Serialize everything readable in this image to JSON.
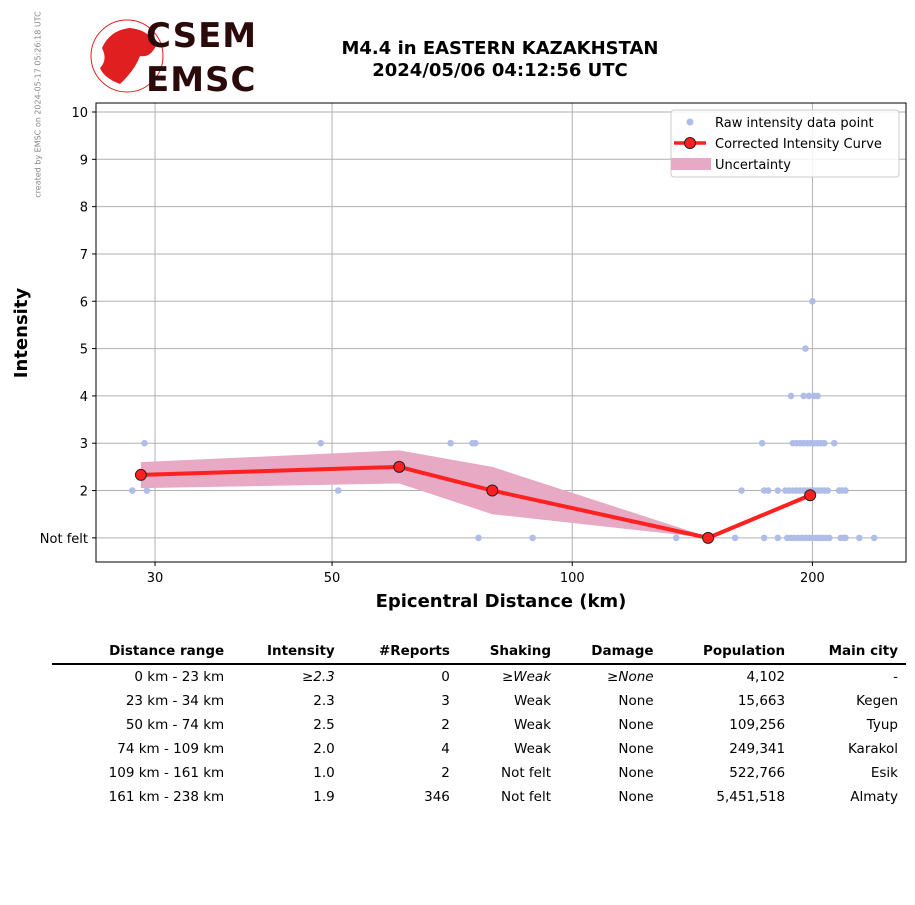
{
  "watermark": "created by EMSC on 2024-05-17 05:26:18 UTC",
  "logo": {
    "top": "CSEM",
    "bottom": "EMSC"
  },
  "title_line1": "M4.4 in EASTERN KAZAKHSTAN",
  "title_line2": "2024/05/06 04:12:56 UTC",
  "colors": {
    "raw": "#b0bde8",
    "curve": "#ff2020",
    "band": "#e8a9c4",
    "grid": "#b0b0b0"
  },
  "chart_data": {
    "type": "line",
    "xlabel": "Epicentral Distance (km)",
    "ylabel": "Intensity",
    "xscale": "log",
    "xlim": [
      25.3,
      262
    ],
    "ylim": [
      0.49,
      10.19
    ],
    "xticks": [
      {
        "v": 30,
        "label": "30"
      },
      {
        "v": 50,
        "label": "50"
      },
      {
        "v": 100,
        "label": "100"
      },
      {
        "v": 200,
        "label": "200"
      }
    ],
    "yticks": [
      {
        "v": 1,
        "label": "Not felt"
      },
      {
        "v": 2,
        "label": "2"
      },
      {
        "v": 3,
        "label": "3"
      },
      {
        "v": 4,
        "label": "4"
      },
      {
        "v": 5,
        "label": "5"
      },
      {
        "v": 6,
        "label": "6"
      },
      {
        "v": 7,
        "label": "7"
      },
      {
        "v": 8,
        "label": "8"
      },
      {
        "v": 9,
        "label": "9"
      },
      {
        "v": 10,
        "label": "10"
      }
    ],
    "grid": true,
    "legend_position": "top-right",
    "legend": [
      "Raw intensity data point",
      "Corrected Intensity Curve",
      "Uncertainty"
    ],
    "curve": {
      "x": [
        28.8,
        60.7,
        79.4,
        148,
        198.7
      ],
      "y": [
        2.33,
        2.5,
        2.0,
        1.0,
        1.9
      ]
    },
    "uncertainty": {
      "x": [
        28.8,
        60.7,
        79.4,
        148,
        198.7
      ],
      "low": [
        2.05,
        2.15,
        1.5,
        1.0,
        1.85
      ],
      "high": [
        2.6,
        2.85,
        2.5,
        1.02,
        1.95
      ]
    },
    "raw_points": [
      {
        "y": 1,
        "x": [
          76.3,
          89.2,
          135,
          160,
          174,
          181,
          186,
          188,
          190,
          192,
          194,
          196,
          198,
          200,
          202,
          204,
          206,
          208,
          210,
          217,
          219,
          220,
          229,
          239
        ]
      },
      {
        "y": 2,
        "x": [
          28.1,
          29.3,
          50.9,
          163,
          174,
          176,
          181,
          185,
          187,
          189,
          191,
          193,
          195,
          197,
          199,
          201,
          203,
          205,
          207,
          209,
          216,
          218,
          220
        ]
      },
      {
        "y": 3,
        "x": [
          29.1,
          48.4,
          70.4,
          75,
          75.6,
          173,
          189,
          191,
          193,
          195,
          197,
          199,
          201,
          203,
          205,
          207,
          213
        ]
      },
      {
        "y": 4,
        "x": [
          188,
          195,
          198,
          201,
          203
        ]
      },
      {
        "y": 5,
        "x": [
          196
        ]
      },
      {
        "y": 6,
        "x": [
          200
        ]
      }
    ]
  },
  "table": {
    "headers": [
      "Distance range",
      "Intensity",
      "#Reports",
      "Shaking",
      "Damage",
      "Population",
      "Main city"
    ],
    "rows": [
      [
        "0 km -   23 km",
        "≥2.3",
        "0",
        "≥Weak",
        "≥None",
        "4,102",
        "-"
      ],
      [
        "23 km -   34 km",
        "2.3",
        "3",
        "Weak",
        "None",
        "15,663",
        "Kegen"
      ],
      [
        "50 km -   74 km",
        "2.5",
        "2",
        "Weak",
        "None",
        "109,256",
        "Tyup"
      ],
      [
        "74 km -  109 km",
        "2.0",
        "4",
        "Weak",
        "None",
        "249,341",
        "Karakol"
      ],
      [
        "109 km -  161 km",
        "1.0",
        "2",
        "Not felt",
        "None",
        "522,766",
        "Esik"
      ],
      [
        "161 km -  238 km",
        "1.9",
        "346",
        "Not felt",
        "None",
        "5,451,518",
        "Almaty"
      ]
    ]
  }
}
